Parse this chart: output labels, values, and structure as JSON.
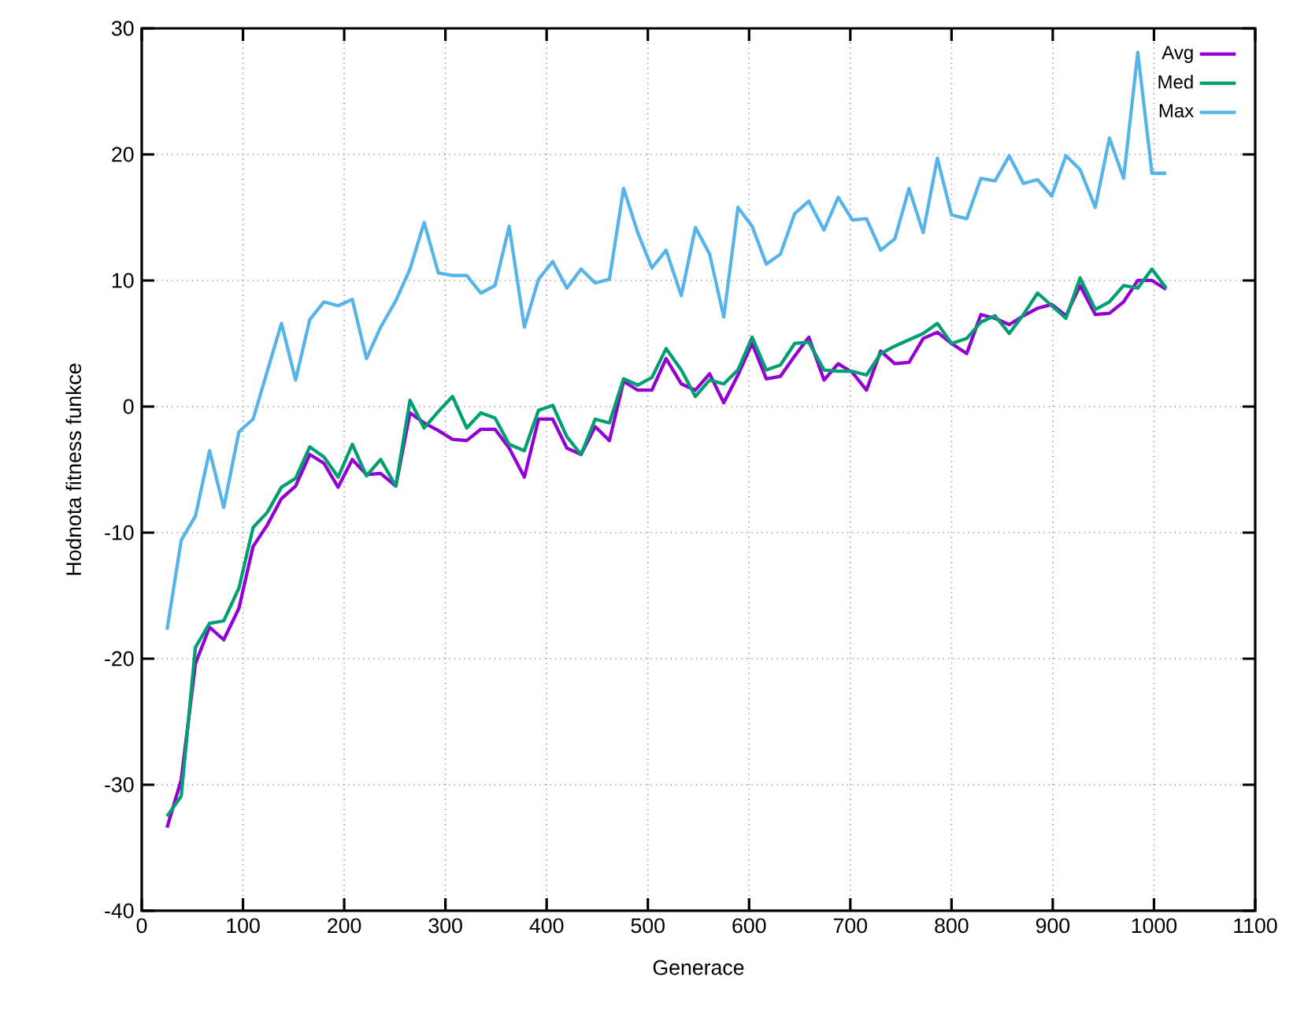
{
  "chart_data": {
    "type": "line",
    "xlabel": "Generace",
    "ylabel": "Hodnota fitness funkce",
    "x": [
      25,
      39,
      53,
      67,
      81,
      96,
      110,
      124,
      138,
      152,
      166,
      180,
      194,
      208,
      222,
      236,
      251,
      265,
      279,
      293,
      307,
      321,
      335,
      349,
      363,
      378,
      392,
      406,
      420,
      434,
      448,
      462,
      476,
      490,
      504,
      518,
      533,
      547,
      561,
      575,
      589,
      603,
      617,
      631,
      645,
      659,
      674,
      688,
      702,
      716,
      730,
      744,
      758,
      772,
      786,
      800,
      815,
      829,
      843,
      857,
      871,
      885,
      899,
      913,
      927,
      942,
      956,
      970,
      984,
      998,
      1012
    ],
    "series": [
      {
        "name": "Avg",
        "color": "#9400d3",
        "values": [
          -33.4,
          -29.6,
          -20.4,
          -17.5,
          -18.5,
          -16.0,
          -11.1,
          -9.4,
          -7.3,
          -6.3,
          -3.8,
          -4.5,
          -6.4,
          -4.2,
          -5.4,
          -5.3,
          -6.3,
          -0.5,
          -1.3,
          -1.9,
          -2.6,
          -2.7,
          -1.8,
          -1.8,
          -3.3,
          -5.6,
          -1.0,
          -1.0,
          -3.3,
          -3.8,
          -1.6,
          -2.7,
          2.0,
          1.3,
          1.3,
          3.8,
          1.8,
          1.3,
          2.6,
          0.3,
          2.5,
          5.0,
          2.2,
          2.4,
          4.0,
          5.5,
          2.1,
          3.4,
          2.7,
          1.3,
          4.4,
          3.4,
          3.5,
          5.4,
          5.9,
          5.0,
          4.2,
          7.3,
          7.0,
          6.5,
          7.2,
          7.8,
          8.1,
          7.2,
          9.6,
          7.3,
          7.4,
          8.3,
          10.0,
          10.0,
          9.3
        ]
      },
      {
        "name": "Med",
        "color": "#009e73",
        "values": [
          -32.5,
          -30.9,
          -19.1,
          -17.2,
          -17.0,
          -14.4,
          -9.6,
          -8.4,
          -6.4,
          -5.7,
          -3.2,
          -4.0,
          -5.6,
          -3.0,
          -5.5,
          -4.2,
          -6.3,
          0.5,
          -1.7,
          -0.4,
          0.8,
          -1.7,
          -0.5,
          -0.9,
          -3.0,
          -3.5,
          -0.3,
          0.1,
          -2.4,
          -3.8,
          -1.0,
          -1.3,
          2.2,
          1.7,
          2.3,
          4.6,
          2.9,
          0.8,
          2.1,
          1.8,
          2.9,
          5.5,
          2.9,
          3.3,
          5.0,
          5.1,
          2.9,
          2.8,
          2.8,
          2.5,
          4.2,
          4.8,
          5.3,
          5.8,
          6.6,
          5.0,
          5.4,
          6.7,
          7.2,
          5.8,
          7.3,
          9.0,
          8.0,
          7.0,
          10.2,
          7.7,
          8.3,
          9.6,
          9.4,
          10.9,
          9.4
        ]
      },
      {
        "name": "Max",
        "color": "#56b4e9",
        "values": [
          -17.7,
          -10.6,
          -8.7,
          -3.5,
          -8.0,
          -2.0,
          -1.0,
          2.8,
          6.6,
          2.1,
          6.9,
          8.3,
          8.0,
          8.5,
          3.8,
          6.3,
          8.4,
          10.9,
          14.6,
          10.6,
          10.4,
          10.4,
          9.0,
          9.6,
          14.3,
          6.3,
          10.1,
          11.5,
          9.4,
          10.9,
          9.8,
          10.1,
          17.3,
          13.8,
          11.0,
          12.4,
          8.8,
          14.2,
          12.1,
          7.1,
          15.8,
          14.3,
          11.3,
          12.1,
          15.3,
          16.3,
          14.0,
          16.6,
          14.8,
          14.9,
          12.4,
          13.3,
          17.3,
          13.8,
          19.7,
          15.2,
          14.9,
          18.1,
          17.9,
          19.9,
          17.7,
          18.0,
          16.7,
          19.9,
          18.8,
          15.8,
          21.3,
          18.1,
          28.1,
          18.5,
          18.5
        ]
      }
    ],
    "xlim": [
      0,
      1100
    ],
    "ylim": [
      -40,
      30
    ],
    "xticks": [
      0,
      100,
      200,
      300,
      400,
      500,
      600,
      700,
      800,
      900,
      1000,
      1100
    ],
    "yticks": [
      -40,
      -30,
      -20,
      -10,
      0,
      10,
      20,
      30
    ],
    "grid": true,
    "legend": "top right",
    "line_style": "solid"
  }
}
